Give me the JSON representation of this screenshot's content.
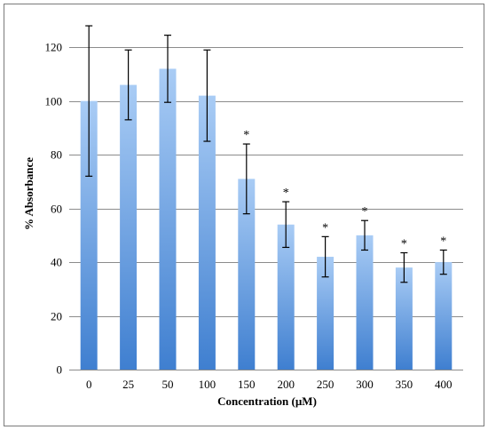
{
  "chart_data": {
    "type": "bar",
    "title": "",
    "xlabel": "Concentration (µM)",
    "ylabel": "% Absorbance",
    "ylim": [
      0,
      130
    ],
    "yticks": [
      0,
      20,
      40,
      60,
      80,
      100,
      120
    ],
    "grid": true,
    "legend": "none",
    "categories": [
      "0",
      "25",
      "50",
      "100",
      "150",
      "200",
      "250",
      "300",
      "350",
      "400"
    ],
    "values": [
      100,
      106,
      112,
      102,
      71,
      54,
      42,
      50,
      38,
      40
    ],
    "error": [
      28,
      13,
      12.5,
      17,
      13,
      8.5,
      7.5,
      5.5,
      5.5,
      4.5
    ],
    "significance": [
      "",
      "",
      "",
      "",
      "*",
      "*",
      "*",
      "*",
      "*",
      "*"
    ],
    "colors": {
      "bar_top": "#a9ccf5",
      "bar_bottom": "#3f7fd0",
      "grid": "#8c8c8c",
      "error_bar": "#000000"
    }
  }
}
